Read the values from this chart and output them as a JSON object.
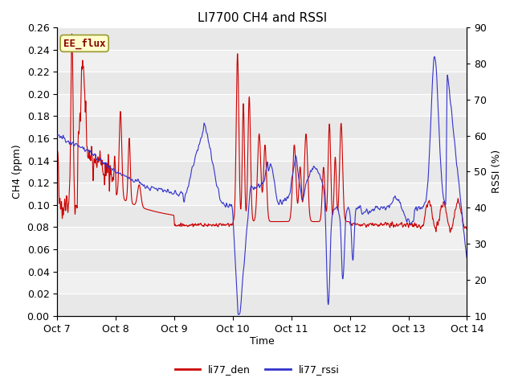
{
  "title": "LI7700 CH4 and RSSI",
  "xlabel": "Time",
  "ylabel_left": "CH4 (ppm)",
  "ylabel_right": "RSSI (%)",
  "ylim_left": [
    0.0,
    0.26
  ],
  "ylim_right": [
    10,
    90
  ],
  "yticks_left": [
    0.0,
    0.02,
    0.04,
    0.06,
    0.08,
    0.1,
    0.12,
    0.14,
    0.16,
    0.18,
    0.2,
    0.22,
    0.24,
    0.26
  ],
  "yticks_right": [
    10,
    20,
    30,
    40,
    50,
    60,
    70,
    80,
    90
  ],
  "xtick_labels": [
    "Oct 7",
    "Oct 8",
    "Oct 9",
    "Oct 10",
    "Oct 11",
    "Oct 12",
    "Oct 13",
    "Oct 14"
  ],
  "color_ch4": "#cc0000",
  "color_rssi": "#3333cc",
  "background_color": "#ffffff",
  "band_color_light": "#e8e8e8",
  "band_color_dark": "#d4d4d4",
  "annotation_text": "EE_flux",
  "annotation_bg": "#ffffcc",
  "annotation_border": "#999933",
  "legend_labels": [
    "li77_den",
    "li77_rssi"
  ],
  "title_fontsize": 11,
  "axis_fontsize": 9,
  "tick_fontsize": 9
}
